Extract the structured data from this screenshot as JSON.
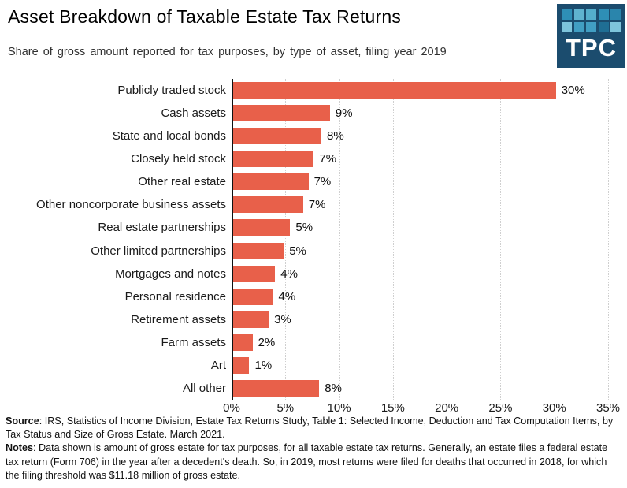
{
  "header": {
    "title": "Asset Breakdown of Taxable Estate Tax Returns",
    "subtitle": "Share of gross amount reported for tax purposes, by type of asset, filing year 2019",
    "logo_text": "TPC",
    "logo_bg": "#1B4C6E",
    "logo_squares": [
      "#2E8FB6",
      "#5FB3CF",
      "#55AECB",
      "#2E8FB6",
      "#2A85AC",
      "#7EC4DB",
      "#419EC3",
      "#419EC3",
      "#1F6E94",
      "#7EC4DB"
    ]
  },
  "chart_data": {
    "type": "bar",
    "orientation": "horizontal",
    "title": "Asset Breakdown of Taxable Estate Tax Returns",
    "subtitle": "Share of gross amount reported for tax purposes, by type of asset, filing year 2019",
    "xlabel": "",
    "ylabel": "",
    "xlim": [
      0,
      35
    ],
    "grid": "dotted-vertical-every-5pct",
    "legend": "none",
    "bar_color": "#E8604A",
    "categories": [
      "Publicly traded stock",
      "Cash assets",
      "State and local bonds",
      "Closely held stock",
      "Other real estate",
      "Other noncorporate business assets",
      "Real estate partnerships",
      "Other limited partnerships",
      "Mortgages and notes",
      "Personal residence",
      "Retirement assets",
      "Farm assets",
      "Art",
      "All other"
    ],
    "values": [
      30,
      9,
      8,
      7,
      7,
      7,
      5,
      5,
      4,
      4,
      3,
      2,
      1,
      8
    ],
    "value_labels": [
      "30%",
      "9%",
      "8%",
      "7%",
      "7%",
      "7%",
      "5%",
      "5%",
      "4%",
      "4%",
      "3%",
      "2%",
      "1%",
      "8%"
    ],
    "bar_lengths_pct": [
      30.0,
      9.0,
      8.2,
      7.5,
      7.0,
      6.5,
      5.3,
      4.7,
      3.9,
      3.7,
      3.3,
      1.8,
      1.5,
      8.0
    ],
    "x_ticks": [
      "0%",
      "5%",
      "10%",
      "15%",
      "20%",
      "25%",
      "30%",
      "35%"
    ]
  },
  "footer": {
    "source_label": "Source",
    "source_text": ": IRS, Statistics of Income Division, Estate Tax Returns Study, Table 1: Selected Income, Deduction and Tax Computation Items, by Tax Status and Size of Gross Estate. March 2021.",
    "notes_label": "Notes",
    "notes_text": ": Data shown is amount of gross estate for tax purposes, for all taxable estate tax returns. Generally, an estate files a federal estate tax return (Form 706) in the year after a decedent's death. So, in 2019, most returns were filed for deaths that occurred in 2018, for which the filing threshold was $11.18 million of gross estate."
  }
}
